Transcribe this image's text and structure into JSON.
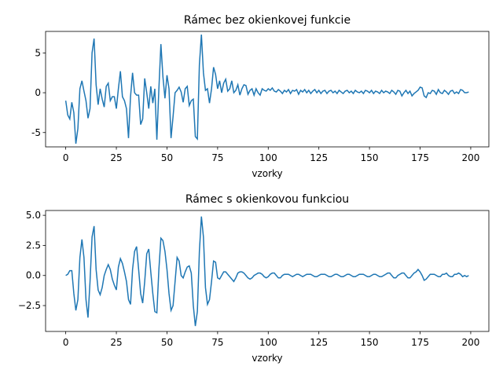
{
  "chart_data": [
    {
      "type": "line",
      "title": "Rámec bez okienkovej funkcie",
      "xlabel": "vzorky",
      "color": "#1f77b4",
      "x": [
        0,
        1,
        2,
        3,
        4,
        5,
        6,
        7,
        8,
        9,
        10,
        11,
        12,
        13,
        14,
        15,
        16,
        17,
        18,
        19,
        20,
        21,
        22,
        23,
        24,
        25,
        26,
        27,
        28,
        29,
        30,
        31,
        32,
        33,
        34,
        35,
        36,
        37,
        38,
        39,
        40,
        41,
        42,
        43,
        44,
        45,
        46,
        47,
        48,
        49,
        50,
        51,
        52,
        53,
        54,
        55,
        56,
        57,
        58,
        59,
        60,
        61,
        62,
        63,
        64,
        65,
        66,
        67,
        68,
        69,
        70,
        71,
        72,
        73,
        74,
        75,
        76,
        77,
        78,
        79,
        80,
        81,
        82,
        83,
        84,
        85,
        86,
        87,
        88,
        89,
        90,
        91,
        92,
        93,
        94,
        95,
        96,
        97,
        98,
        99,
        100,
        101,
        102,
        103,
        104,
        105,
        106,
        107,
        108,
        109,
        110,
        111,
        112,
        113,
        114,
        115,
        116,
        117,
        118,
        119,
        120,
        121,
        122,
        123,
        124,
        125,
        126,
        127,
        128,
        129,
        130,
        131,
        132,
        133,
        134,
        135,
        136,
        137,
        138,
        139,
        140,
        141,
        142,
        143,
        144,
        145,
        146,
        147,
        148,
        149,
        150,
        151,
        152,
        153,
        154,
        155,
        156,
        157,
        158,
        159,
        160,
        161,
        162,
        163,
        164,
        165,
        166,
        167,
        168,
        169,
        170,
        171,
        172,
        173,
        174,
        175,
        176,
        177,
        178,
        179,
        180,
        181,
        182,
        183,
        184,
        185,
        186,
        187,
        188,
        189,
        190,
        191,
        192,
        193,
        194,
        195,
        196,
        197,
        198,
        199
      ],
      "values": [
        -1,
        -2.8,
        -3.3,
        -1.2,
        -2.5,
        -6.4,
        -4.5,
        0.5,
        1.5,
        0.2,
        -1,
        -3.2,
        -2,
        5,
        6.8,
        1,
        -1.5,
        0.5,
        -0.8,
        -1.8,
        0.8,
        1.2,
        -1,
        -0.5,
        -0.5,
        -2,
        0.5,
        2.7,
        -0.5,
        -1,
        -2,
        -5.7,
        -0.5,
        2.5,
        0,
        -0.3,
        -0.3,
        -4,
        -3.3,
        1.8,
        0,
        -2,
        0.8,
        -1.3,
        0.5,
        -5.9,
        0.5,
        6.1,
        2,
        -0.7,
        2.2,
        0.5,
        -5.7,
        -3,
        0,
        0.3,
        0.7,
        0.1,
        -1.2,
        0.5,
        0.8,
        -1.6,
        -1,
        -0.8,
        -5.5,
        -5.8,
        3.5,
        7.3,
        2.5,
        0.3,
        0.5,
        -1.3,
        0.5,
        3.2,
        2.3,
        0.5,
        1.5,
        0,
        1.2,
        1.7,
        0.2,
        0.5,
        1.5,
        0,
        0.3,
        1,
        -0.3,
        0.5,
        1,
        0.9,
        -0.2,
        0.3,
        0.5,
        -0.3,
        0.5,
        0,
        -0.3,
        0.5,
        0.3,
        0.2,
        0.5,
        0.3,
        0.6,
        0.2,
        0.1,
        0.4,
        0.2,
        -0.1,
        0.3,
        0.1,
        0.4,
        -0.1,
        0.3,
        0.2,
        0.4,
        -0.2,
        0.3,
        0.1,
        0.4,
        0,
        0.3,
        -0.1,
        0.2,
        0.4,
        0,
        0.3,
        -0.1,
        0.2,
        0.3,
        -0.1,
        0.2,
        0.3,
        0,
        0.2,
        -0.1,
        0.3,
        0.1,
        -0.1,
        0.2,
        0.3,
        0,
        0.2,
        -0.1,
        0.3,
        0.1,
        0,
        0.2,
        -0.1,
        0.3,
        0.2,
        0,
        0.3,
        -0.1,
        0.2,
        0.1,
        -0.1,
        0.3,
        0,
        0.2,
        0.1,
        -0.1,
        0.3,
        0.1,
        -0.2,
        0.3,
        0.2,
        -0.4,
        0,
        0.3,
        -0.1,
        0.2,
        -0.4,
        -0.1,
        0.1,
        0.3,
        0.7,
        0.6,
        -0.4,
        -0.6,
        0,
        -0.1,
        0.3,
        0.2,
        -0.2,
        0.4,
        0,
        -0.1,
        0.3,
        0.1,
        -0.2,
        0.2,
        0.3,
        -0.1,
        0.1,
        -0.1,
        0.4,
        0.3,
        0,
        0,
        0.1
      ],
      "xlim": [
        -9.95,
        208.95
      ],
      "xticks": [
        0,
        25,
        50,
        75,
        100,
        125,
        150,
        175,
        200
      ],
      "ylim": [
        -6.8,
        7.7
      ],
      "yticks": [
        -5,
        0,
        5
      ]
    },
    {
      "type": "line",
      "title": "Rámec s okienkovou funkciou",
      "xlabel": "vzorky",
      "color": "#1f77b4",
      "x": [
        0,
        1,
        2,
        3,
        4,
        5,
        6,
        7,
        8,
        9,
        10,
        11,
        12,
        13,
        14,
        15,
        16,
        17,
        18,
        19,
        20,
        21,
        22,
        23,
        24,
        25,
        26,
        27,
        28,
        29,
        30,
        31,
        32,
        33,
        34,
        35,
        36,
        37,
        38,
        39,
        40,
        41,
        42,
        43,
        44,
        45,
        46,
        47,
        48,
        49,
        50,
        51,
        52,
        53,
        54,
        55,
        56,
        57,
        58,
        59,
        60,
        61,
        62,
        63,
        64,
        65,
        66,
        67,
        68,
        69,
        70,
        71,
        72,
        73,
        74,
        75,
        76,
        77,
        78,
        79,
        80,
        81,
        82,
        83,
        84,
        85,
        86,
        87,
        88,
        89,
        90,
        91,
        92,
        93,
        94,
        95,
        96,
        97,
        98,
        99,
        100,
        101,
        102,
        103,
        104,
        105,
        106,
        107,
        108,
        109,
        110,
        111,
        112,
        113,
        114,
        115,
        116,
        117,
        118,
        119,
        120,
        121,
        122,
        123,
        124,
        125,
        126,
        127,
        128,
        129,
        130,
        131,
        132,
        133,
        134,
        135,
        136,
        137,
        138,
        139,
        140,
        141,
        142,
        143,
        144,
        145,
        146,
        147,
        148,
        149,
        150,
        151,
        152,
        153,
        154,
        155,
        156,
        157,
        158,
        159,
        160,
        161,
        162,
        163,
        164,
        165,
        166,
        167,
        168,
        169,
        170,
        171,
        172,
        173,
        174,
        175,
        176,
        177,
        178,
        179,
        180,
        181,
        182,
        183,
        184,
        185,
        186,
        187,
        188,
        189,
        190,
        191,
        192,
        193,
        194,
        195,
        196,
        197,
        198,
        199
      ],
      "values": [
        0,
        0.1,
        0.4,
        0.4,
        -1.5,
        -2.9,
        -2,
        1.5,
        3,
        1.5,
        -2,
        -3.5,
        -0.5,
        3.2,
        4.1,
        0.5,
        -1.2,
        -1.6,
        -1,
        0,
        0.5,
        0.9,
        0.5,
        -0.3,
        -0.8,
        -1.2,
        0.7,
        1.4,
        1,
        0.3,
        -0.5,
        -2,
        -2.4,
        0.5,
        2,
        2.4,
        0.5,
        -1.5,
        -2.3,
        -0.5,
        1.8,
        2.2,
        0.3,
        -1.5,
        -3,
        -3.1,
        0.5,
        3.1,
        2.9,
        2,
        0.5,
        -1.5,
        -2.9,
        -2.5,
        -0.5,
        1.5,
        1.2,
        0,
        -0.2,
        0.3,
        0.7,
        0.8,
        0.2,
        -2.5,
        -4.2,
        -3,
        2,
        4.9,
        3.2,
        -1,
        -2.4,
        -2,
        -0.5,
        1.2,
        1.1,
        -0.2,
        -0.3,
        0,
        0.3,
        0.3,
        0.1,
        -0.1,
        -0.3,
        -0.5,
        -0.2,
        0.2,
        0.3,
        0.3,
        0.2,
        0,
        -0.2,
        -0.3,
        -0.2,
        0,
        0.1,
        0.2,
        0.2,
        0.1,
        -0.1,
        -0.2,
        -0.1,
        0.1,
        0.2,
        0.2,
        0,
        -0.2,
        -0.2,
        0,
        0.1,
        0.1,
        0.1,
        0,
        -0.1,
        0,
        0.1,
        0.1,
        0,
        -0.1,
        0,
        0.1,
        0.1,
        0.1,
        0,
        -0.1,
        -0.1,
        0,
        0.1,
        0.1,
        0.1,
        0,
        -0.1,
        -0.1,
        0,
        0.1,
        0.1,
        0,
        -0.1,
        -0.1,
        0,
        0.1,
        0.1,
        0,
        -0.1,
        -0.1,
        0,
        0.1,
        0.1,
        0.1,
        0,
        -0.1,
        -0.1,
        0,
        0.1,
        0.1,
        0,
        -0.1,
        -0.1,
        0,
        0.1,
        0.2,
        0.2,
        0,
        -0.2,
        -0.2,
        0,
        0.1,
        0.2,
        0.2,
        0,
        -0.2,
        -0.2,
        0,
        0.2,
        0.3,
        0.5,
        0.3,
        0,
        -0.4,
        -0.3,
        -0.1,
        0.1,
        0.1,
        0.1,
        0,
        -0.1,
        -0.1,
        0.1,
        0.1,
        0.2,
        0,
        -0.1,
        -0.1,
        0.1,
        0.1,
        0.2,
        0.1,
        -0.1,
        0,
        -0.1,
        0
      ],
      "xlim": [
        -9.95,
        208.95
      ],
      "xticks": [
        0,
        25,
        50,
        75,
        100,
        125,
        150,
        175,
        200
      ],
      "ylim": [
        -4.65,
        5.4
      ],
      "yticks": [
        {
          "value": -2.5,
          "label": "−2.5"
        },
        {
          "value": 0,
          "label": "0.0"
        },
        2.5,
        {
          "value": 5,
          "label": "5.0"
        }
      ]
    }
  ]
}
